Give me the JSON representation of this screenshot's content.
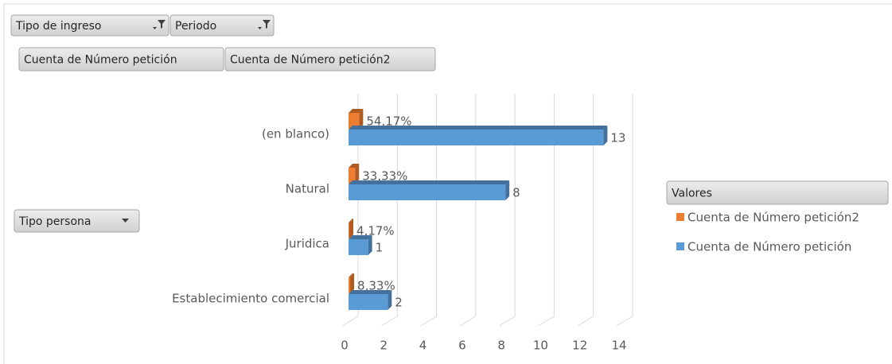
{
  "chart_data": {
    "type": "bar3d_horizontal",
    "filter_buttons": [
      "Tipo de ingreso",
      "Periodo"
    ],
    "value_buttons": [
      "Cuenta de Número petición",
      "Cuenta de Número petición2"
    ],
    "row_button": "Tipo persona",
    "legend_title": "Valores",
    "legend": "right",
    "categories": [
      "(en blanco)",
      "Natural",
      "Juridica",
      "Establecimiento comercial"
    ],
    "series": [
      {
        "name": "Cuenta de Número petición2",
        "color": "#ed7d31",
        "side_color": "#ae5a21",
        "values": [
          0.5417,
          0.3333,
          0.0417,
          0.0833
        ],
        "value_labels": [
          "54,17%",
          "33,33%",
          "4,17%",
          "8,33%"
        ]
      },
      {
        "name": "Cuenta de Número petición",
        "color": "#5b9bd5",
        "side_color": "#41719c",
        "values": [
          13,
          8,
          1,
          2
        ]
      }
    ],
    "xlim": [
      0,
      14
    ],
    "xticks": [
      0,
      2,
      4,
      6,
      8,
      10,
      12,
      14
    ],
    "grid": true
  }
}
